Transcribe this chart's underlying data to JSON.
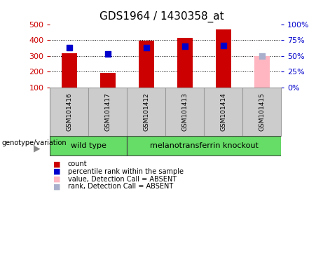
{
  "title": "GDS1964 / 1430358_at",
  "samples": [
    "GSM101416",
    "GSM101417",
    "GSM101412",
    "GSM101413",
    "GSM101414",
    "GSM101415"
  ],
  "counts": [
    315,
    190,
    395,
    415,
    465,
    null
  ],
  "ranks": [
    63,
    53,
    63,
    65,
    66,
    null
  ],
  "absent_value": [
    null,
    null,
    null,
    null,
    null,
    300
  ],
  "absent_rank": [
    null,
    null,
    null,
    null,
    null,
    50
  ],
  "count_color": "#cc0000",
  "rank_color": "#0000cc",
  "absent_value_color": "#ffb6c1",
  "absent_rank_color": "#aab0cc",
  "ylim_left": [
    100,
    500
  ],
  "ylim_right": [
    0,
    100
  ],
  "grid_values": [
    200,
    300,
    400
  ],
  "right_tick_values": [
    0,
    25,
    50,
    75,
    100
  ],
  "left_tick_values": [
    100,
    200,
    300,
    400,
    500
  ],
  "wt_samples": [
    0,
    1
  ],
  "mt_samples": [
    2,
    3,
    4,
    5
  ],
  "wt_label": "wild type",
  "mt_label": "melanotransferrin knockout",
  "group_color": "#66dd66",
  "legend_items": [
    {
      "label": "count",
      "color": "#cc0000"
    },
    {
      "label": "percentile rank within the sample",
      "color": "#0000cc"
    },
    {
      "label": "value, Detection Call = ABSENT",
      "color": "#ffb6c1"
    },
    {
      "label": "rank, Detection Call = ABSENT",
      "color": "#aab0cc"
    }
  ],
  "bar_width": 0.4,
  "rank_square_size": 30,
  "xlabel_bg": "#cccccc",
  "plot_bg": "#ffffff",
  "title_fontsize": 11,
  "tick_fontsize": 8,
  "label_fontsize": 7,
  "genotype_label": "genotype/variation"
}
